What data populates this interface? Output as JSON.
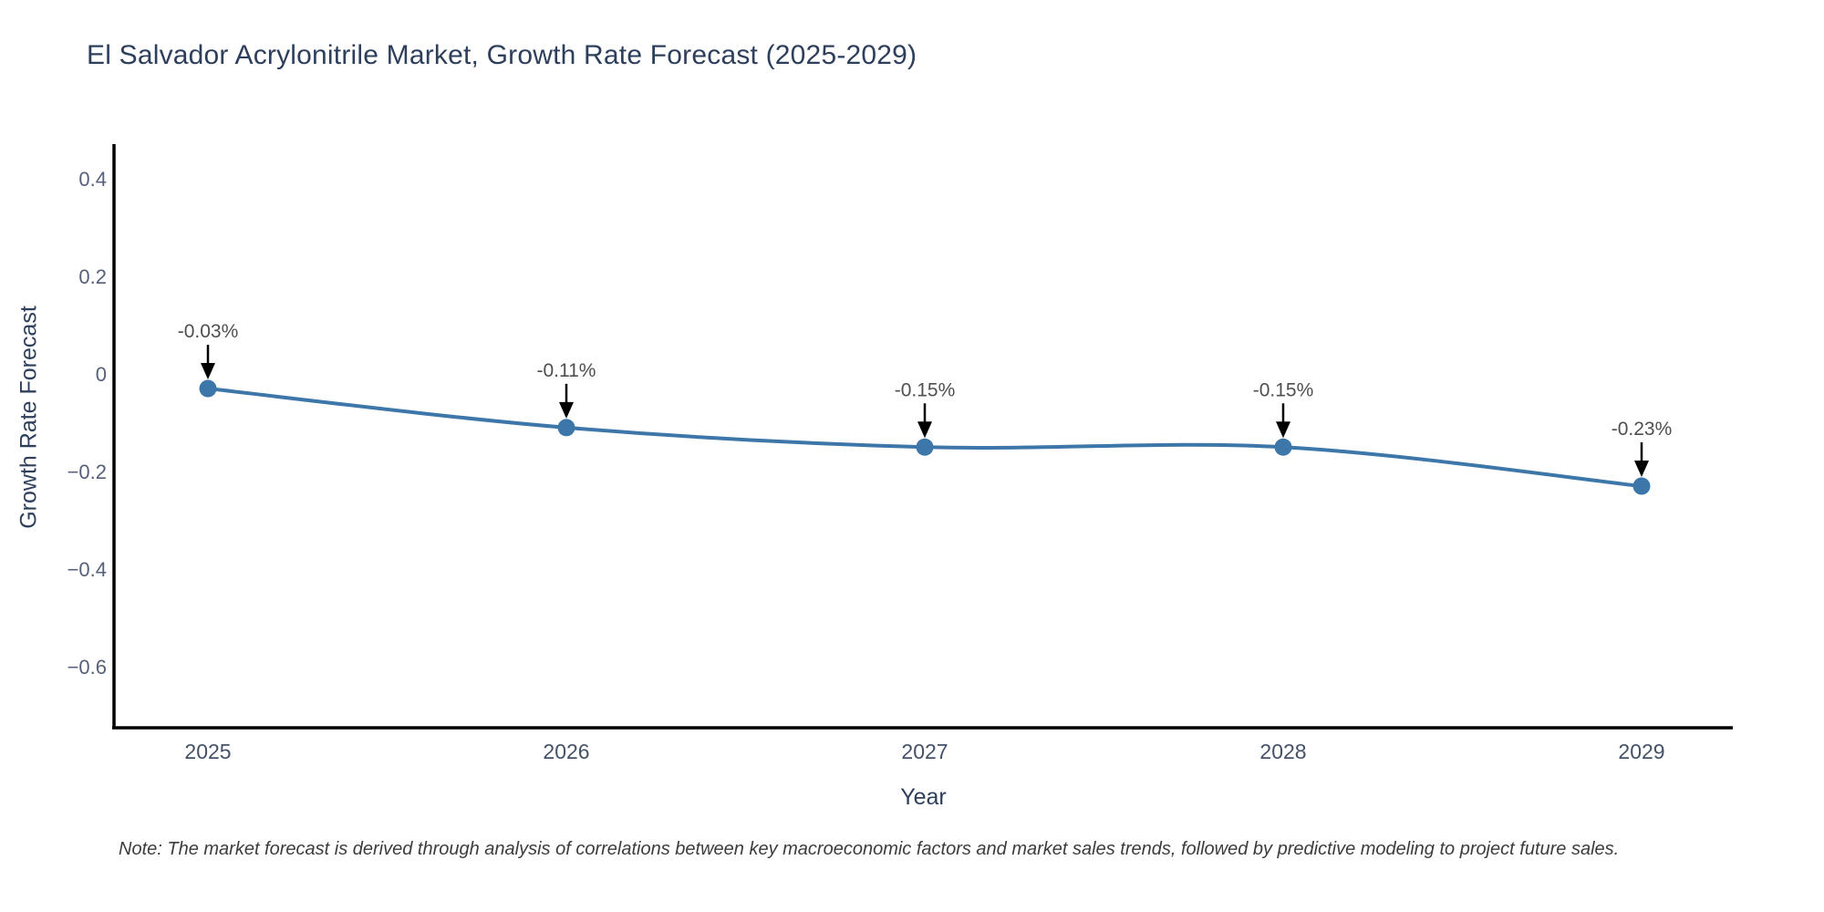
{
  "chart": {
    "title": "El Salvador Acrylonitrile Market, Growth Rate Forecast (2025-2029)",
    "xlabel": "Year",
    "ylabel": "Growth Rate Forecast",
    "note": "Note: The market forecast is derived through analysis of correlations between key macroeconomic factors and market sales trends, followed by predictive modeling to project future sales."
  },
  "chart_data": {
    "type": "line",
    "title": "El Salvador Acrylonitrile Market, Growth Rate Forecast (2025-2029)",
    "xlabel": "Year",
    "ylabel": "Growth Rate Forecast",
    "categories": [
      "2025",
      "2026",
      "2027",
      "2028",
      "2029"
    ],
    "series": [
      {
        "name": "Growth Rate Forecast",
        "values": [
          -0.03,
          -0.11,
          -0.15,
          -0.15,
          -0.23
        ],
        "point_labels": [
          "-0.03%",
          "-0.11%",
          "-0.15%",
          "-0.15%",
          "-0.23%"
        ]
      }
    ],
    "yticks": [
      0.4,
      0.2,
      0,
      -0.2,
      -0.4,
      -0.6
    ],
    "ytick_labels": [
      "0.4",
      "0.2",
      "0",
      "−0.2",
      "−0.4",
      "−0.6"
    ],
    "ylim": [
      -0.73,
      0.47
    ],
    "grid": false,
    "legend": "none",
    "line_color": "#3d76a8",
    "marker_color": "#3d76a8",
    "axis_color": "#000000",
    "annotation_arrow_color": "#000000",
    "annotation_text_color": "#4f4f4f",
    "smooth": true
  }
}
